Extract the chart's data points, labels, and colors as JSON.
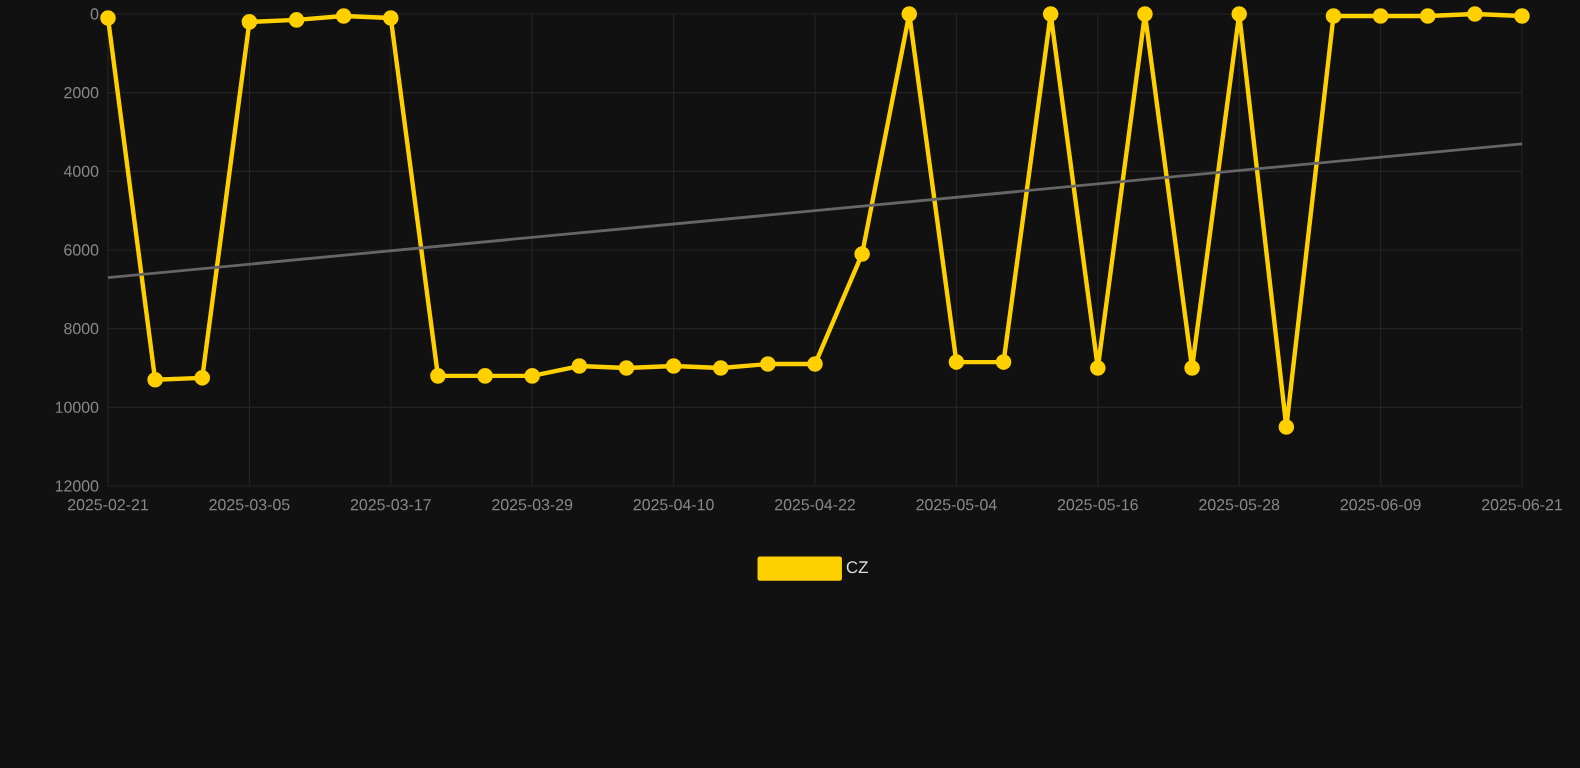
{
  "chart_data": {
    "type": "line",
    "x": [
      "2025-02-21",
      "2025-02-25",
      "2025-03-01",
      "2025-03-05",
      "2025-03-09",
      "2025-03-13",
      "2025-03-17",
      "2025-03-21",
      "2025-03-25",
      "2025-03-29",
      "2025-04-02",
      "2025-04-06",
      "2025-04-10",
      "2025-04-14",
      "2025-04-18",
      "2025-04-22",
      "2025-04-26",
      "2025-04-30",
      "2025-05-04",
      "2025-05-08",
      "2025-05-12",
      "2025-05-16",
      "2025-05-20",
      "2025-05-24",
      "2025-05-28",
      "2025-06-01",
      "2025-06-05",
      "2025-06-09",
      "2025-06-13",
      "2025-06-17",
      "2025-06-21"
    ],
    "series": [
      {
        "name": "CZ",
        "color": "#ffd000",
        "marker": "circle",
        "values": [
          100,
          9300,
          9250,
          200,
          150,
          50,
          100,
          9200,
          9200,
          9200,
          8950,
          9000,
          8950,
          9000,
          8900,
          8900,
          6100,
          0,
          8850,
          8850,
          0,
          9000,
          0,
          9000,
          0,
          10500,
          50,
          50,
          50,
          0,
          50
        ]
      },
      {
        "color": "#666666",
        "marker": "none",
        "x": [
          "2025-02-21",
          "2025-06-21"
        ],
        "values": [
          6700,
          3300
        ]
      }
    ],
    "ylim": [
      12000,
      0
    ],
    "yticks": [
      0,
      2000,
      4000,
      6000,
      8000,
      10000,
      12000
    ],
    "xlim": [
      "2025-02-21",
      "2025-06-21"
    ],
    "xticks": [
      "2025-02-21",
      "2025-03-05",
      "2025-03-17",
      "2025-03-29",
      "2025-04-10",
      "2025-04-22",
      "2025-05-04",
      "2025-05-16",
      "2025-05-28",
      "2025-06-09",
      "2025-06-21"
    ],
    "grid": true,
    "legend": "bottom"
  }
}
